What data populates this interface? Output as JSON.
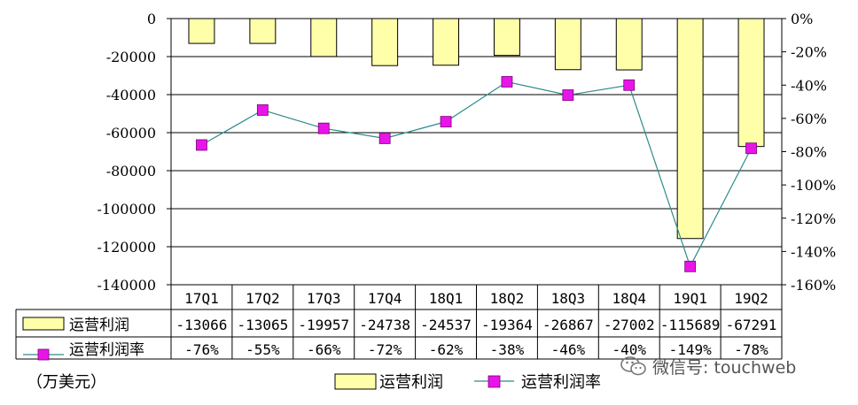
{
  "unit_label": "（万美元）",
  "watermark": "微信号: touchweb",
  "colors": {
    "bar_fill": "#FFFFAA",
    "bar_stroke": "#000000",
    "line": "#2E8B8B",
    "marker": "#E815E8",
    "grid": "#000000"
  },
  "chart_data": {
    "type": "bar",
    "categories": [
      "17Q1",
      "17Q2",
      "17Q3",
      "17Q4",
      "18Q1",
      "18Q2",
      "18Q3",
      "18Q4",
      "19Q1",
      "19Q2"
    ],
    "ylim": [
      -140000,
      0
    ],
    "yticks": [
      "0",
      "-20000",
      "-40000",
      "-60000",
      "-80000",
      "-100000",
      "-120000",
      "-140000"
    ],
    "y2lim": [
      -160,
      0
    ],
    "y2ticks": [
      "0%",
      "-20%",
      "-40%",
      "-60%",
      "-80%",
      "-100%",
      "-120%",
      "-140%",
      "-160%"
    ],
    "grid": true,
    "legend_position": "bottom",
    "series": [
      {
        "name": "运营利润",
        "type": "bar",
        "axis": "left",
        "values": [
          -13066,
          -13065,
          -19957,
          -24738,
          -24537,
          -19364,
          -26867,
          -27002,
          -115689,
          -67291
        ],
        "labels": [
          "-13066",
          "-13065",
          "-19957",
          "-24738",
          "-24537",
          "-19364",
          "-26867",
          "-27002",
          "-115689",
          "-67291"
        ]
      },
      {
        "name": "运营利润率",
        "type": "line",
        "axis": "right",
        "values": [
          -76,
          -55,
          -66,
          -72,
          -62,
          -38,
          -46,
          -40,
          -149,
          -78
        ],
        "labels": [
          "-76%",
          "-55%",
          "-66%",
          "-72%",
          "-62%",
          "-38%",
          "-46%",
          "-40%",
          "-149%",
          "-78%"
        ]
      }
    ]
  }
}
